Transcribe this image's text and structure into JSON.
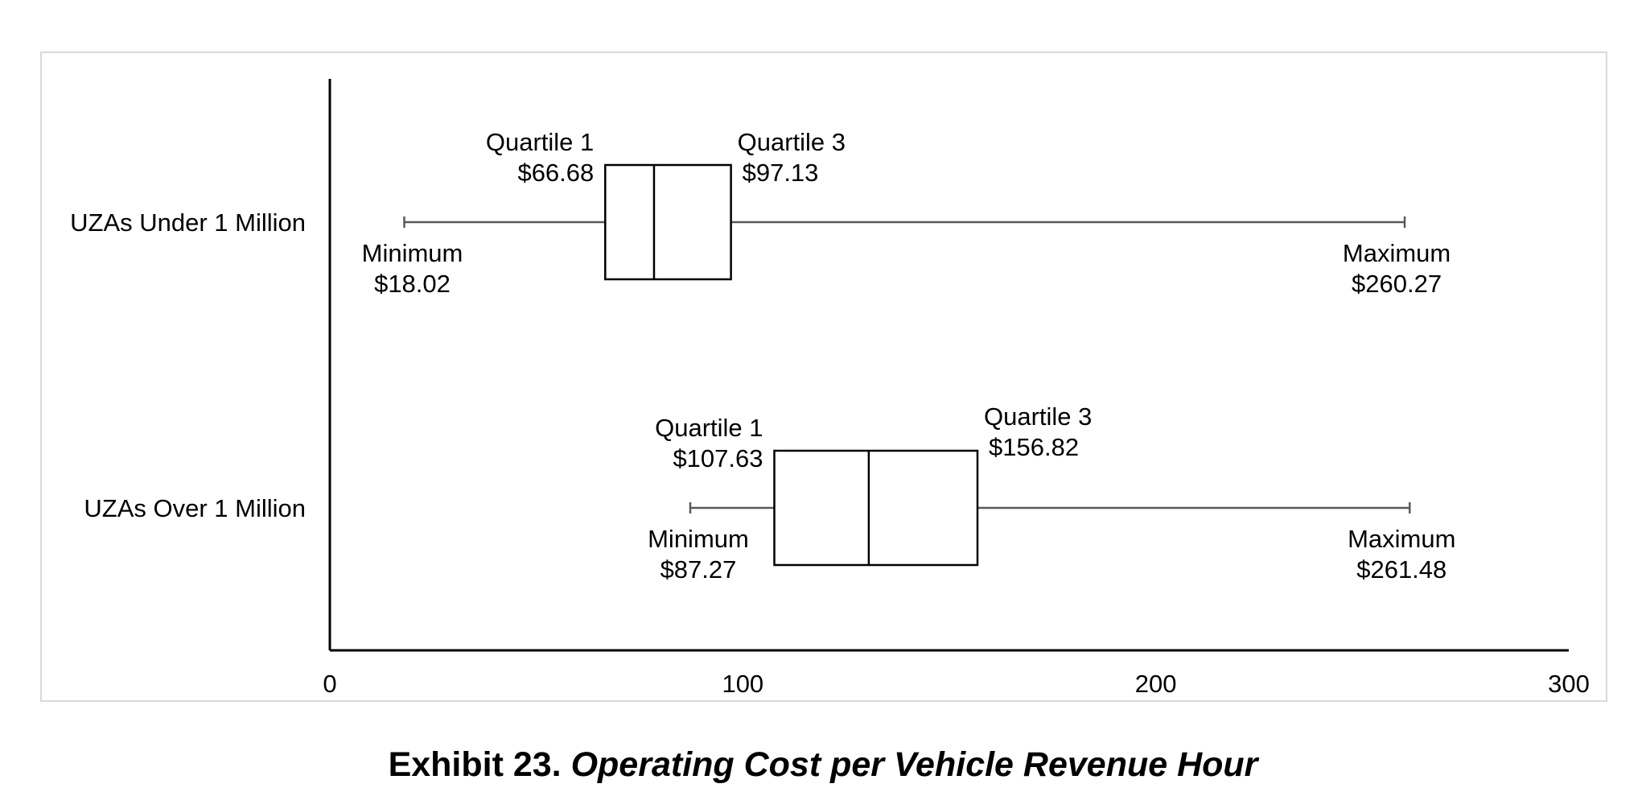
{
  "caption": {
    "label": "Exhibit 23.",
    "title": "Operating Cost per Vehicle Revenue Hour"
  },
  "chart_data": {
    "type": "boxplot",
    "orientation": "horizontal",
    "title": "",
    "xlabel": "",
    "ylabel": "",
    "xlim": [
      0,
      300
    ],
    "x_ticks": [
      "0",
      "100",
      "200",
      "300"
    ],
    "grid": false,
    "legend": "none",
    "categories": [
      "UZAs Under 1 Million",
      "UZAs Over 1 Million"
    ],
    "boxes": [
      {
        "category": "UZAs Under 1 Million",
        "min": 18.02,
        "q1": 66.68,
        "median": 78.5,
        "q3": 97.13,
        "max": 260.27,
        "labels": {
          "min_label": "Minimum",
          "min_value": "$18.02",
          "q1_label": "Quartile 1",
          "q1_value": "$66.68",
          "q3_label": "Quartile 3",
          "q3_value": "$97.13",
          "max_label": "Maximum",
          "max_value": "$260.27"
        }
      },
      {
        "category": "UZAs Over 1 Million",
        "min": 87.27,
        "q1": 107.63,
        "median": 130.5,
        "q3": 156.82,
        "max": 261.48,
        "labels": {
          "min_label": "Minimum",
          "min_value": "$87.27",
          "q1_label": "Quartile 1",
          "q1_value": "$107.63",
          "q3_label": "Quartile 3",
          "q3_value": "$156.82",
          "max_label": "Maximum",
          "max_value": "$261.48"
        }
      }
    ],
    "colors": {
      "box_stroke": "#000000",
      "whisker": "#595959",
      "axis": "#000000",
      "frame": "#d9d9d9"
    }
  }
}
